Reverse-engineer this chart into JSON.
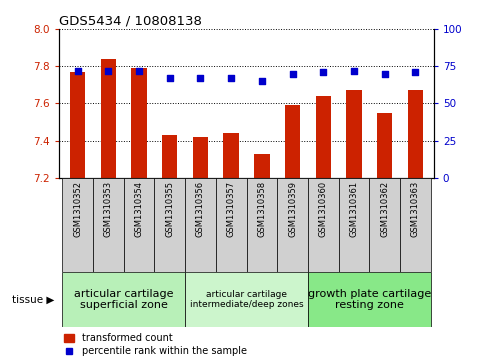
{
  "title": "GDS5434 / 10808138",
  "samples": [
    "GSM1310352",
    "GSM1310353",
    "GSM1310354",
    "GSM1310355",
    "GSM1310356",
    "GSM1310357",
    "GSM1310358",
    "GSM1310359",
    "GSM1310360",
    "GSM1310361",
    "GSM1310362",
    "GSM1310363"
  ],
  "bar_values": [
    7.77,
    7.84,
    7.79,
    7.43,
    7.42,
    7.44,
    7.33,
    7.59,
    7.64,
    7.67,
    7.55,
    7.67
  ],
  "percentile_values": [
    72,
    72,
    72,
    67,
    67,
    67,
    65,
    70,
    71,
    72,
    70,
    71
  ],
  "ylim_left": [
    7.2,
    8.0
  ],
  "ylim_right": [
    0,
    100
  ],
  "yticks_left": [
    7.2,
    7.4,
    7.6,
    7.8,
    8.0
  ],
  "yticks_right": [
    0,
    25,
    50,
    75,
    100
  ],
  "bar_color": "#cc2200",
  "dot_color": "#0000cc",
  "bar_width": 0.5,
  "tissue_groups": [
    {
      "label": "articular cartilage\nsuperficial zone",
      "start": 0,
      "end": 3,
      "color": "#b8f0b8",
      "fontsize": 8
    },
    {
      "label": "articular cartilage\nintermediate/deep zones",
      "start": 4,
      "end": 7,
      "color": "#ccf5cc",
      "fontsize": 6.5
    },
    {
      "label": "growth plate cartilage\nresting zone",
      "start": 8,
      "end": 11,
      "color": "#88e888",
      "fontsize": 8
    }
  ],
  "tissue_label": "tissue",
  "legend_bar_label": "transformed count",
  "legend_dot_label": "percentile rank within the sample",
  "tick_label_color_left": "#cc2200",
  "tick_label_color_right": "#0000cc",
  "xtick_bg_color": "#d0d0d0",
  "spine_color": "#000000"
}
